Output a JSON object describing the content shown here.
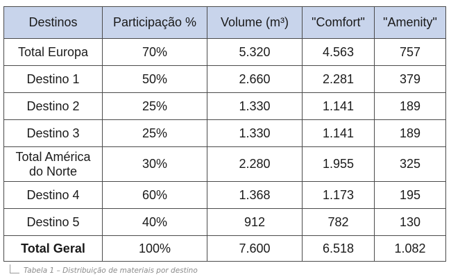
{
  "table": {
    "headers": [
      "Destinos",
      "Participação %",
      "Volume (m³)",
      "\"Comfort\"",
      "\"Amenity\""
    ],
    "rows": [
      [
        "Total Europa",
        "70%",
        "5.320",
        "4.563",
        "757"
      ],
      [
        "Destino 1",
        "50%",
        "2.660",
        "2.281",
        "379"
      ],
      [
        "Destino 2",
        "25%",
        "1.330",
        "1.141",
        "189"
      ],
      [
        "Destino 3",
        "25%",
        "1.330",
        "1.141",
        "189"
      ],
      [
        "Total América do Norte",
        "30%",
        "2.280",
        "1.955",
        "325"
      ],
      [
        "Destino 4",
        "60%",
        "1.368",
        "1.173",
        "195"
      ],
      [
        "Destino 5",
        "40%",
        "912",
        "782",
        "130"
      ],
      [
        "Total Geral",
        "100%",
        "7.600",
        "6.518",
        "1.082"
      ]
    ]
  },
  "caption": "Tabela 1 – Distribuição de materiais por destino",
  "colors": {
    "header_bg": "#c8d4eb",
    "border": "#4a4a4a",
    "caption_text": "#8a8a8a"
  }
}
